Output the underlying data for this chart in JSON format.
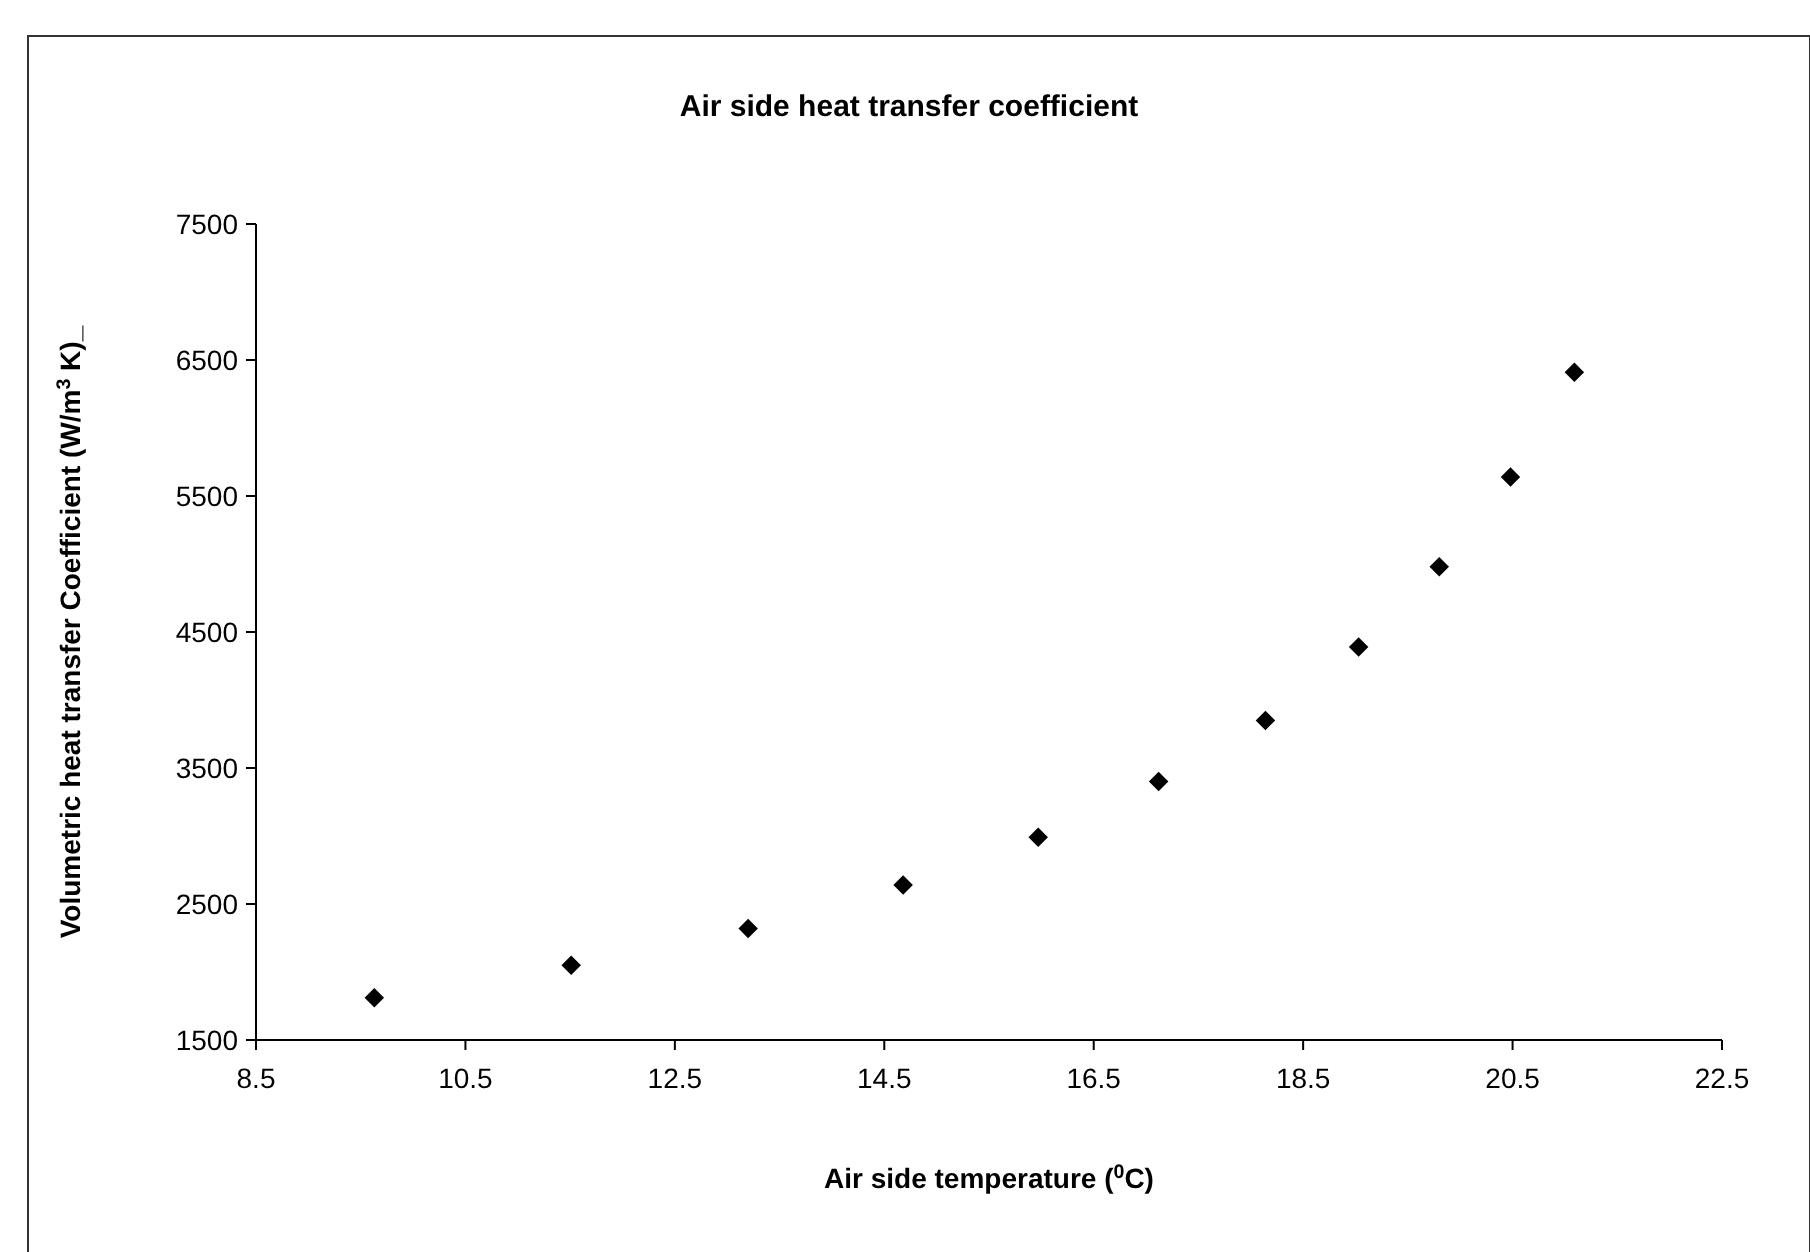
{
  "chart_data": {
    "type": "scatter",
    "title": "Air side heat transfer coefficient",
    "xlabel": "Air side temperature ($^{0}$C)",
    "ylabel": "Volumetric heat transfer Coefficient (W/m$^{3}$ K)_",
    "x": [
      9.63,
      11.51,
      13.2,
      14.68,
      15.97,
      17.12,
      18.14,
      19.03,
      19.8,
      20.48,
      21.09
    ],
    "series": [
      {
        "color": "#000000",
        "values": [
          1810,
          2050,
          2320,
          2640,
          2990,
          3400,
          3850,
          4390,
          4980,
          5640,
          6410
        ]
      }
    ],
    "xlim": [
      8.5,
      22.5
    ],
    "xticks": [
      8.5,
      10.5,
      12.5,
      14.5,
      16.5,
      18.5,
      20.5,
      22.5
    ],
    "ylim": [
      1500,
      7500
    ],
    "yticks": [
      1500,
      2500,
      3500,
      4500,
      5500,
      6500,
      7500
    ],
    "marker": "diamond",
    "grid": false
  }
}
